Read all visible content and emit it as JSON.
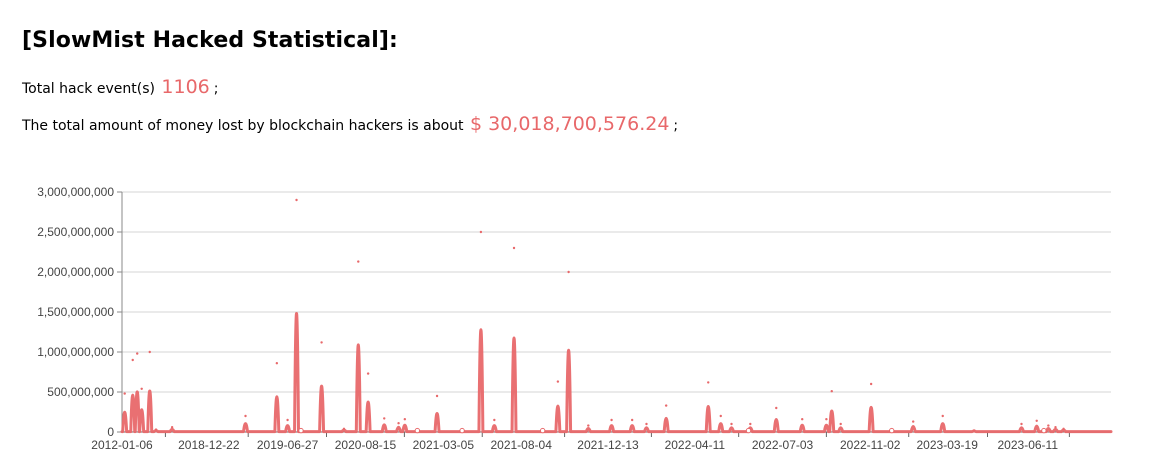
{
  "header": {
    "title": "[SlowMist Hacked Statistical]:"
  },
  "stats": {
    "events_prefix": "Total hack event(s)",
    "events_value": "1106",
    "events_suffix": ";",
    "money_prefix": "The total amount of money lost by blockchain hackers is about",
    "money_value": "$ 30,018,700,576.24",
    "money_suffix": ";"
  },
  "colors": {
    "series": "#e8686a",
    "grid": "#d4d4d4",
    "axis_text": "#444444"
  },
  "chart_data": {
    "type": "line",
    "title": "",
    "xlabel": "",
    "ylabel": "",
    "ylim": [
      0,
      3000000000
    ],
    "y_ticks": [
      0,
      500000000,
      1000000000,
      1500000000,
      2000000000,
      2500000000,
      3000000000
    ],
    "y_tick_labels": [
      "0",
      "500,000,000",
      "1,000,000,000",
      "1,500,000,000",
      "2,000,000,000",
      "2,500,000,000",
      "3,000,000,000"
    ],
    "x_tick_labels": [
      "2012-01-06",
      "2018-12-22",
      "2019-06-27",
      "2020-08-15",
      "2021-03-05",
      "2021-08-04",
      "2021-12-13",
      "2022-04-11",
      "2022-07-03",
      "2022-11-02",
      "2023-03-19",
      "2023-06-11"
    ],
    "x_index_range": [
      0,
      1105
    ],
    "x_tick_indices": [
      0,
      97,
      185,
      272,
      359,
      446,
      543,
      640,
      738,
      836,
      922,
      1012
    ],
    "grid": true,
    "legend": "none",
    "series": [
      {
        "baseline": 5000000,
        "peaks": [
          {
            "x": 3,
            "y": 480000000
          },
          {
            "x": 12,
            "y": 900000000
          },
          {
            "x": 17,
            "y": 980000000
          },
          {
            "x": 22,
            "y": 540000000
          },
          {
            "x": 31,
            "y": 1000000000
          },
          {
            "x": 38,
            "y": 30000000
          },
          {
            "x": 56,
            "y": 60000000
          },
          {
            "x": 138,
            "y": 200000000
          },
          {
            "x": 173,
            "y": 860000000
          },
          {
            "x": 185,
            "y": 150000000
          },
          {
            "x": 195,
            "y": 2900000000
          },
          {
            "x": 223,
            "y": 1120000000
          },
          {
            "x": 248,
            "y": 40000000
          },
          {
            "x": 264,
            "y": 2130000000
          },
          {
            "x": 275,
            "y": 730000000
          },
          {
            "x": 293,
            "y": 170000000
          },
          {
            "x": 309,
            "y": 110000000
          },
          {
            "x": 316,
            "y": 160000000
          },
          {
            "x": 352,
            "y": 450000000
          },
          {
            "x": 401,
            "y": 2500000000
          },
          {
            "x": 416,
            "y": 150000000
          },
          {
            "x": 438,
            "y": 2300000000
          },
          {
            "x": 487,
            "y": 630000000
          },
          {
            "x": 499,
            "y": 2000000000
          },
          {
            "x": 521,
            "y": 80000000
          },
          {
            "x": 547,
            "y": 150000000
          },
          {
            "x": 570,
            "y": 150000000
          },
          {
            "x": 586,
            "y": 100000000
          },
          {
            "x": 608,
            "y": 330000000
          },
          {
            "x": 655,
            "y": 620000000
          },
          {
            "x": 669,
            "y": 200000000
          },
          {
            "x": 681,
            "y": 100000000
          },
          {
            "x": 702,
            "y": 100000000
          },
          {
            "x": 731,
            "y": 300000000
          },
          {
            "x": 760,
            "y": 160000000
          },
          {
            "x": 787,
            "y": 160000000
          },
          {
            "x": 793,
            "y": 510000000
          },
          {
            "x": 803,
            "y": 100000000
          },
          {
            "x": 837,
            "y": 600000000
          },
          {
            "x": 884,
            "y": 130000000
          },
          {
            "x": 917,
            "y": 200000000
          },
          {
            "x": 952,
            "y": 20000000
          },
          {
            "x": 1005,
            "y": 100000000
          },
          {
            "x": 1022,
            "y": 140000000
          },
          {
            "x": 1035,
            "y": 80000000
          },
          {
            "x": 1043,
            "y": 60000000
          },
          {
            "x": 1052,
            "y": 40000000
          }
        ]
      }
    ]
  }
}
